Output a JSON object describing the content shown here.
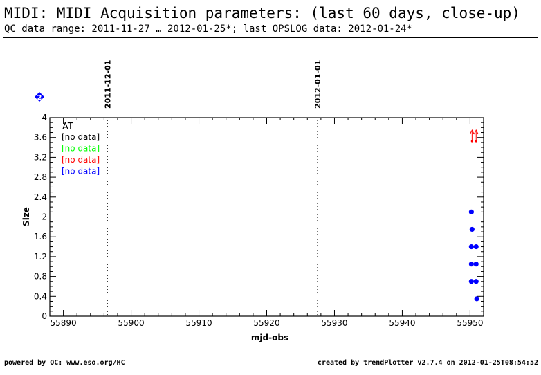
{
  "header": {
    "title": "MIDI: MIDI Acquisition parameters: (last 60 days, close-up)",
    "subtitle": "QC data range: 2011-11-27 … 2012-01-25*; last OPSLOG data: 2012-01-24*"
  },
  "footer": {
    "left": "powered by QC: www.eso.org/HC",
    "right": "created by trendPlotter v2.7.4 on 2012-01-25T08:54:52"
  },
  "badge": {
    "label": "2",
    "color": "#0000ff",
    "icon": "diamond-icon"
  },
  "chart_data": {
    "type": "scatter",
    "xlabel": "mjd-obs",
    "ylabel": "Size",
    "xlim": [
      55888,
      55952
    ],
    "ylim": [
      0,
      4
    ],
    "x_ticks": [
      55890,
      55900,
      55910,
      55920,
      55930,
      55940,
      55950
    ],
    "y_ticks": [
      "0",
      "0.4",
      "0.8",
      "1.2",
      "1.6",
      "2",
      "2.4",
      "2.8",
      "3.2",
      "3.6",
      "4"
    ],
    "markers": [
      {
        "x": 55896.5,
        "label": "2011-12-01"
      },
      {
        "x": 55927.5,
        "label": "2012-01-01"
      }
    ],
    "legend": {
      "position": "top-left",
      "title": "AT",
      "entries": [
        {
          "label": "[no data]",
          "color": "#000000"
        },
        {
          "label": "[no data]",
          "color": "#00ff00"
        },
        {
          "label": "[no data]",
          "color": "#ff0000"
        },
        {
          "label": "[no data]",
          "color": "#0000ff"
        }
      ]
    },
    "series": [
      {
        "color": "#0000ff",
        "points": [
          {
            "x": 55950.2,
            "y": 2.1
          },
          {
            "x": 55950.3,
            "y": 1.75
          },
          {
            "x": 55950.2,
            "y": 1.4
          },
          {
            "x": 55950.9,
            "y": 1.4
          },
          {
            "x": 55950.2,
            "y": 1.05
          },
          {
            "x": 55950.9,
            "y": 1.05
          },
          {
            "x": 55950.2,
            "y": 0.7
          },
          {
            "x": 55950.9,
            "y": 0.7
          },
          {
            "x": 55951.0,
            "y": 0.35
          }
        ]
      }
    ],
    "offscale_arrows": {
      "color": "#ff0000",
      "points": [
        {
          "x": 55950.3
        },
        {
          "x": 55950.9
        }
      ]
    }
  }
}
